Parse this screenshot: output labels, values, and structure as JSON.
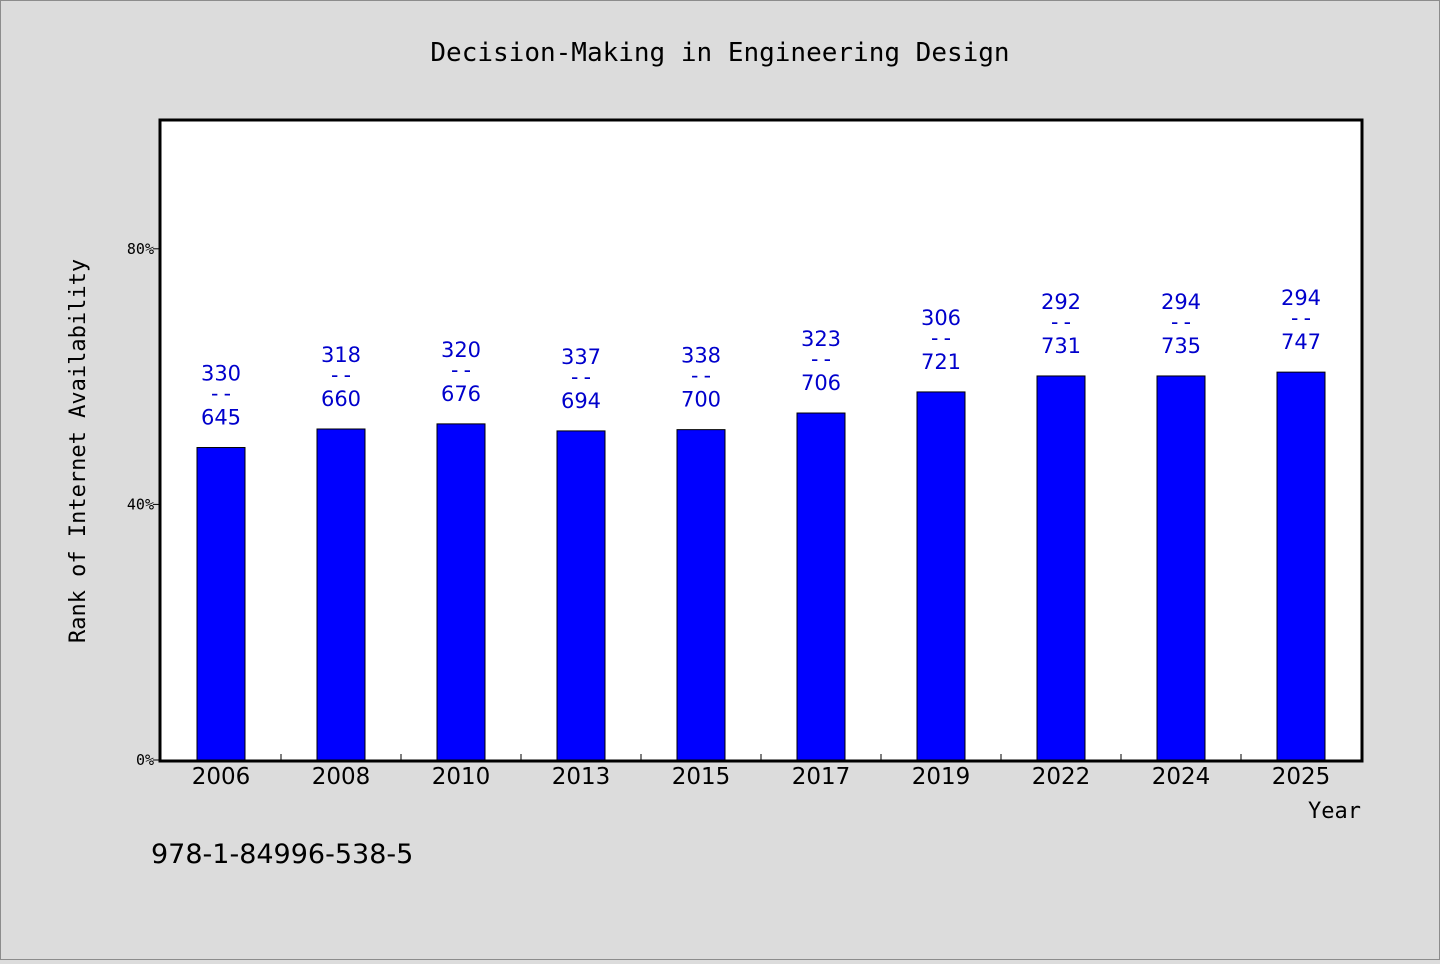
{
  "chart_data": {
    "type": "bar",
    "title": "Decision-Making in Engineering Design",
    "xlabel": "Year",
    "ylabel": "Rank of Internet Availability",
    "ylim": [
      0,
      100
    ],
    "yticks": [
      {
        "value": 0,
        "label": "0%"
      },
      {
        "value": 40,
        "label": "40%"
      },
      {
        "value": 80,
        "label": "80%"
      }
    ],
    "categories": [
      "2006",
      "2008",
      "2010",
      "2013",
      "2015",
      "2017",
      "2019",
      "2022",
      "2024",
      "2025"
    ],
    "values": [
      48.9,
      51.8,
      52.6,
      51.5,
      51.7,
      54.3,
      57.6,
      60.1,
      60.1,
      60.7
    ],
    "labels_top": [
      "330",
      "318",
      "320",
      "337",
      "338",
      "323",
      "306",
      "292",
      "294",
      "294"
    ],
    "labels_sep": "--",
    "labels_bottom": [
      "645",
      "660",
      "676",
      "694",
      "700",
      "706",
      "721",
      "731",
      "735",
      "747"
    ],
    "bar_color": "#0000ff",
    "label_color": "#0000cc",
    "grid": false,
    "legend": "none"
  },
  "footer": {
    "isbn": "978-1-84996-538-5"
  }
}
